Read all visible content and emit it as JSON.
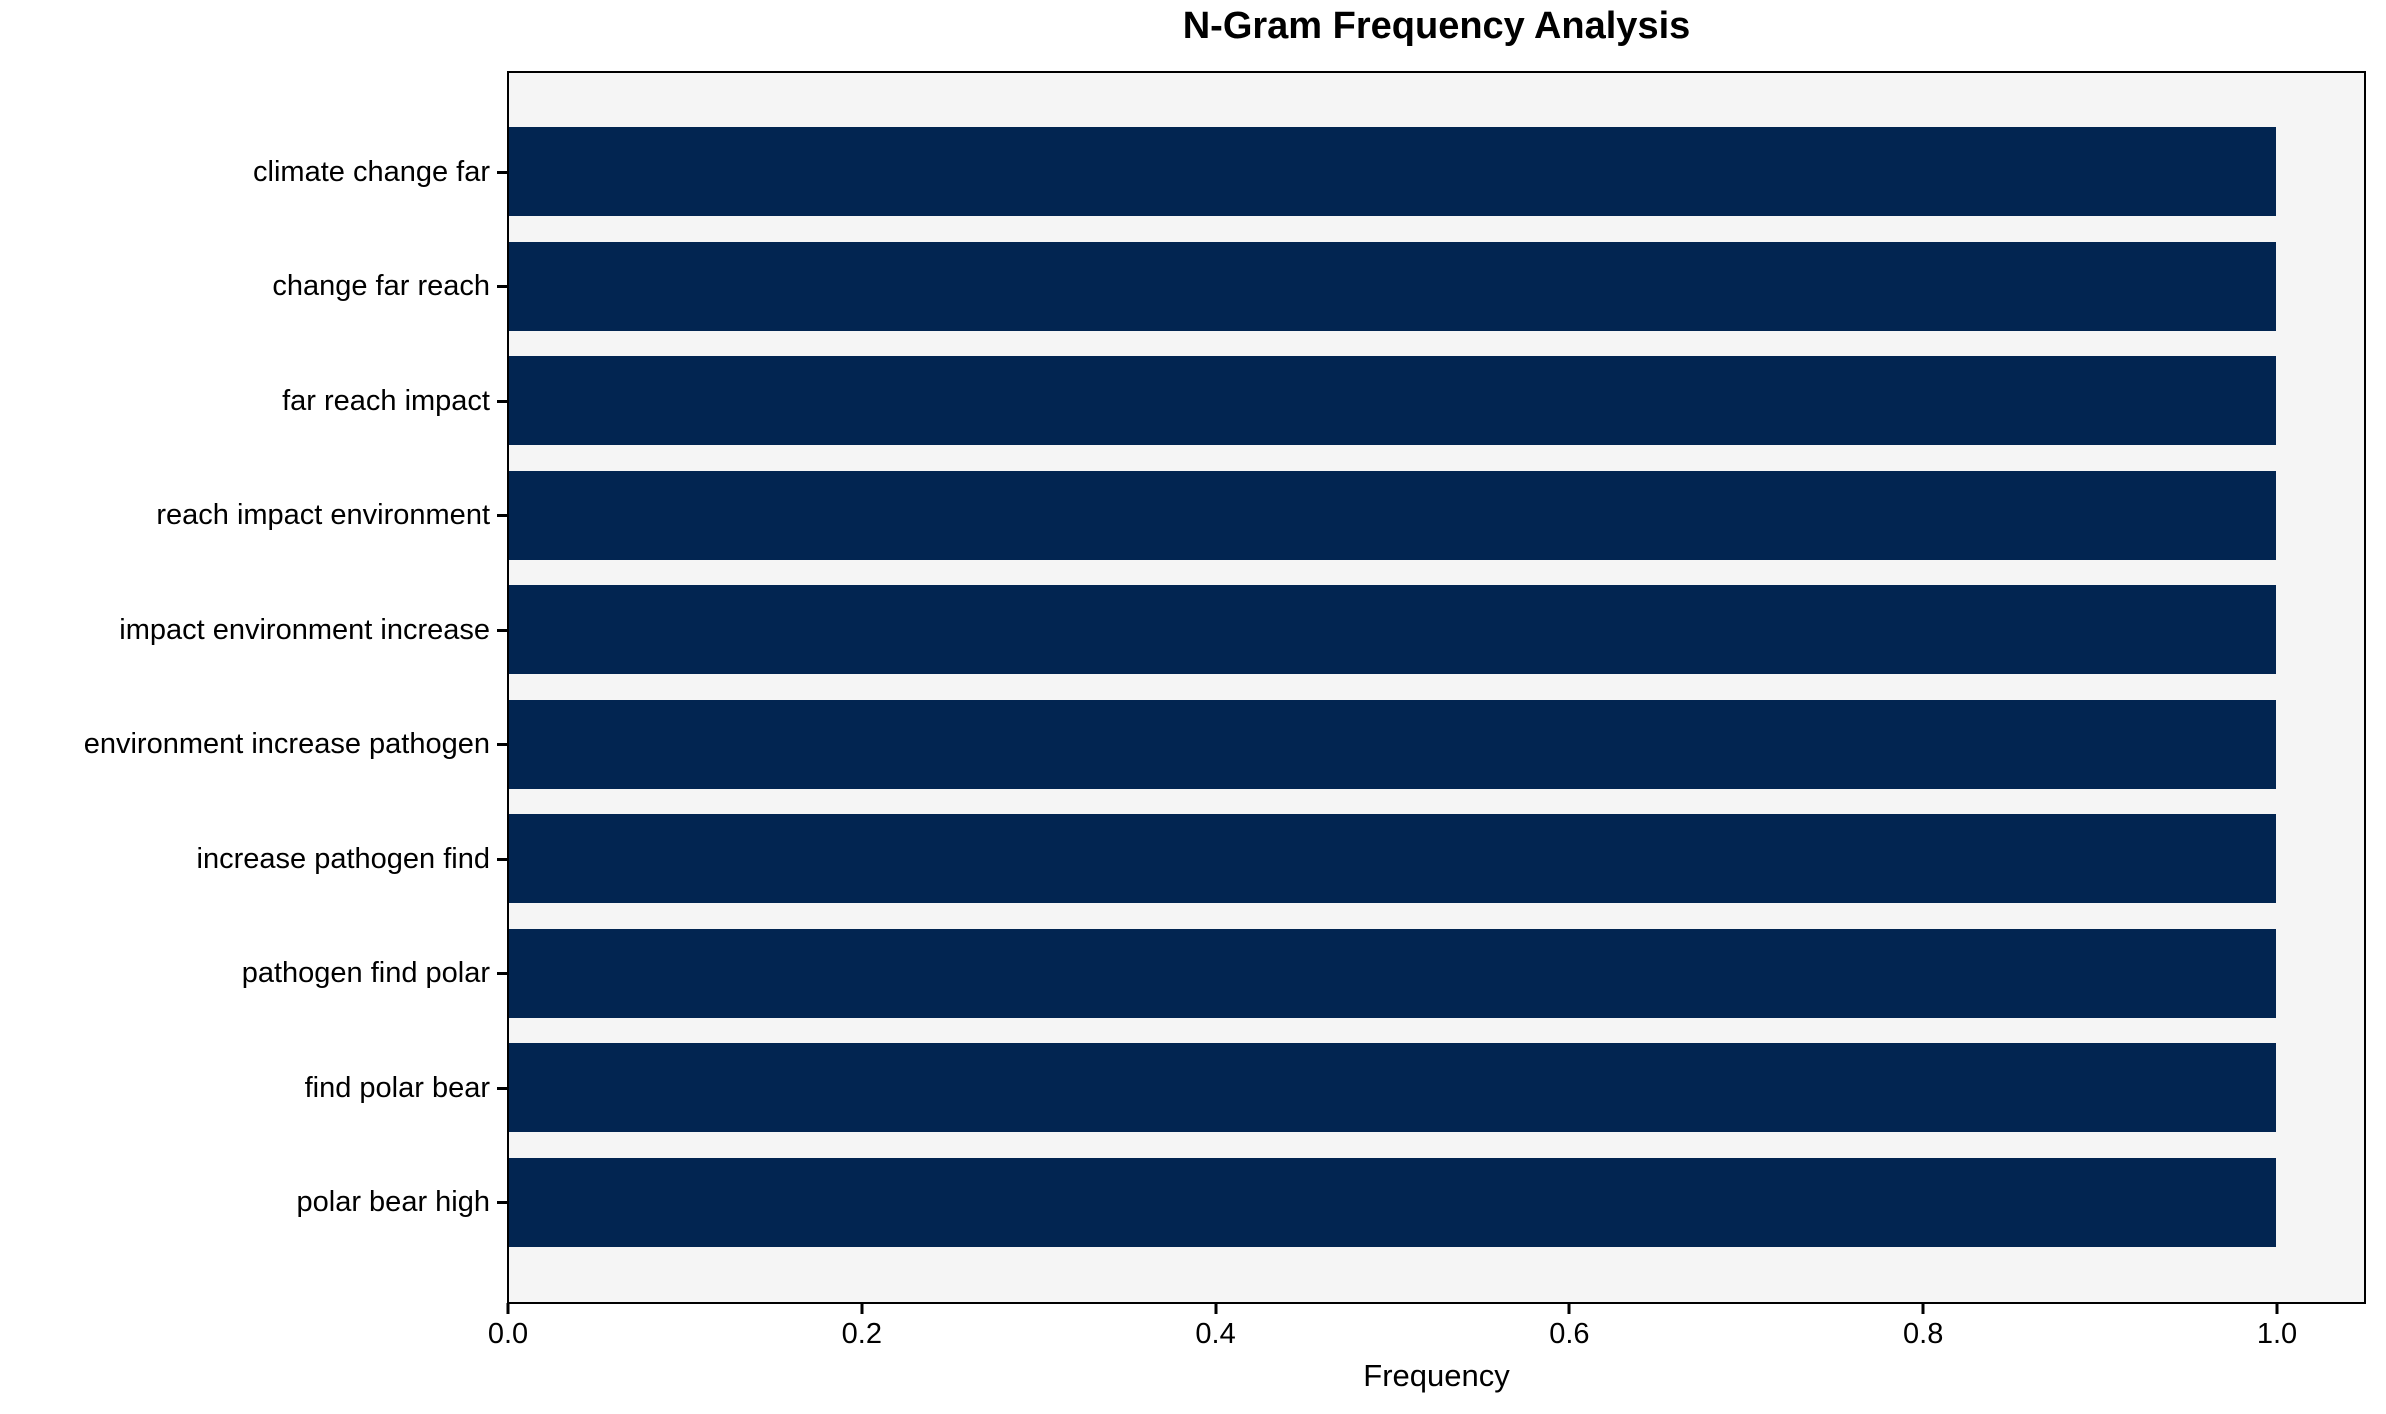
{
  "chart_data": {
    "type": "bar",
    "orientation": "horizontal",
    "title": "N-Gram Frequency Analysis",
    "xlabel": "Frequency",
    "ylabel": "",
    "categories": [
      "climate change far",
      "change far reach",
      "far reach impact",
      "reach impact environment",
      "impact environment increase",
      "environment increase pathogen",
      "increase pathogen find",
      "pathogen find polar",
      "find polar bear",
      "polar bear high"
    ],
    "values": [
      1.0,
      1.0,
      1.0,
      1.0,
      1.0,
      1.0,
      1.0,
      1.0,
      1.0,
      1.0
    ],
    "xlim": [
      0,
      1.05
    ],
    "xtick_values": [
      0.0,
      0.2,
      0.4,
      0.6,
      0.8,
      1.0
    ],
    "xtick_labels": [
      "0.0",
      "0.2",
      "0.4",
      "0.6",
      "0.8",
      "1.0"
    ],
    "grid": false,
    "legend": null,
    "colors": {
      "bar": "#022551",
      "plot_background": "#f5f5f5",
      "figure_background": "#ffffff",
      "spine": "#000000",
      "text": "#000000"
    }
  }
}
